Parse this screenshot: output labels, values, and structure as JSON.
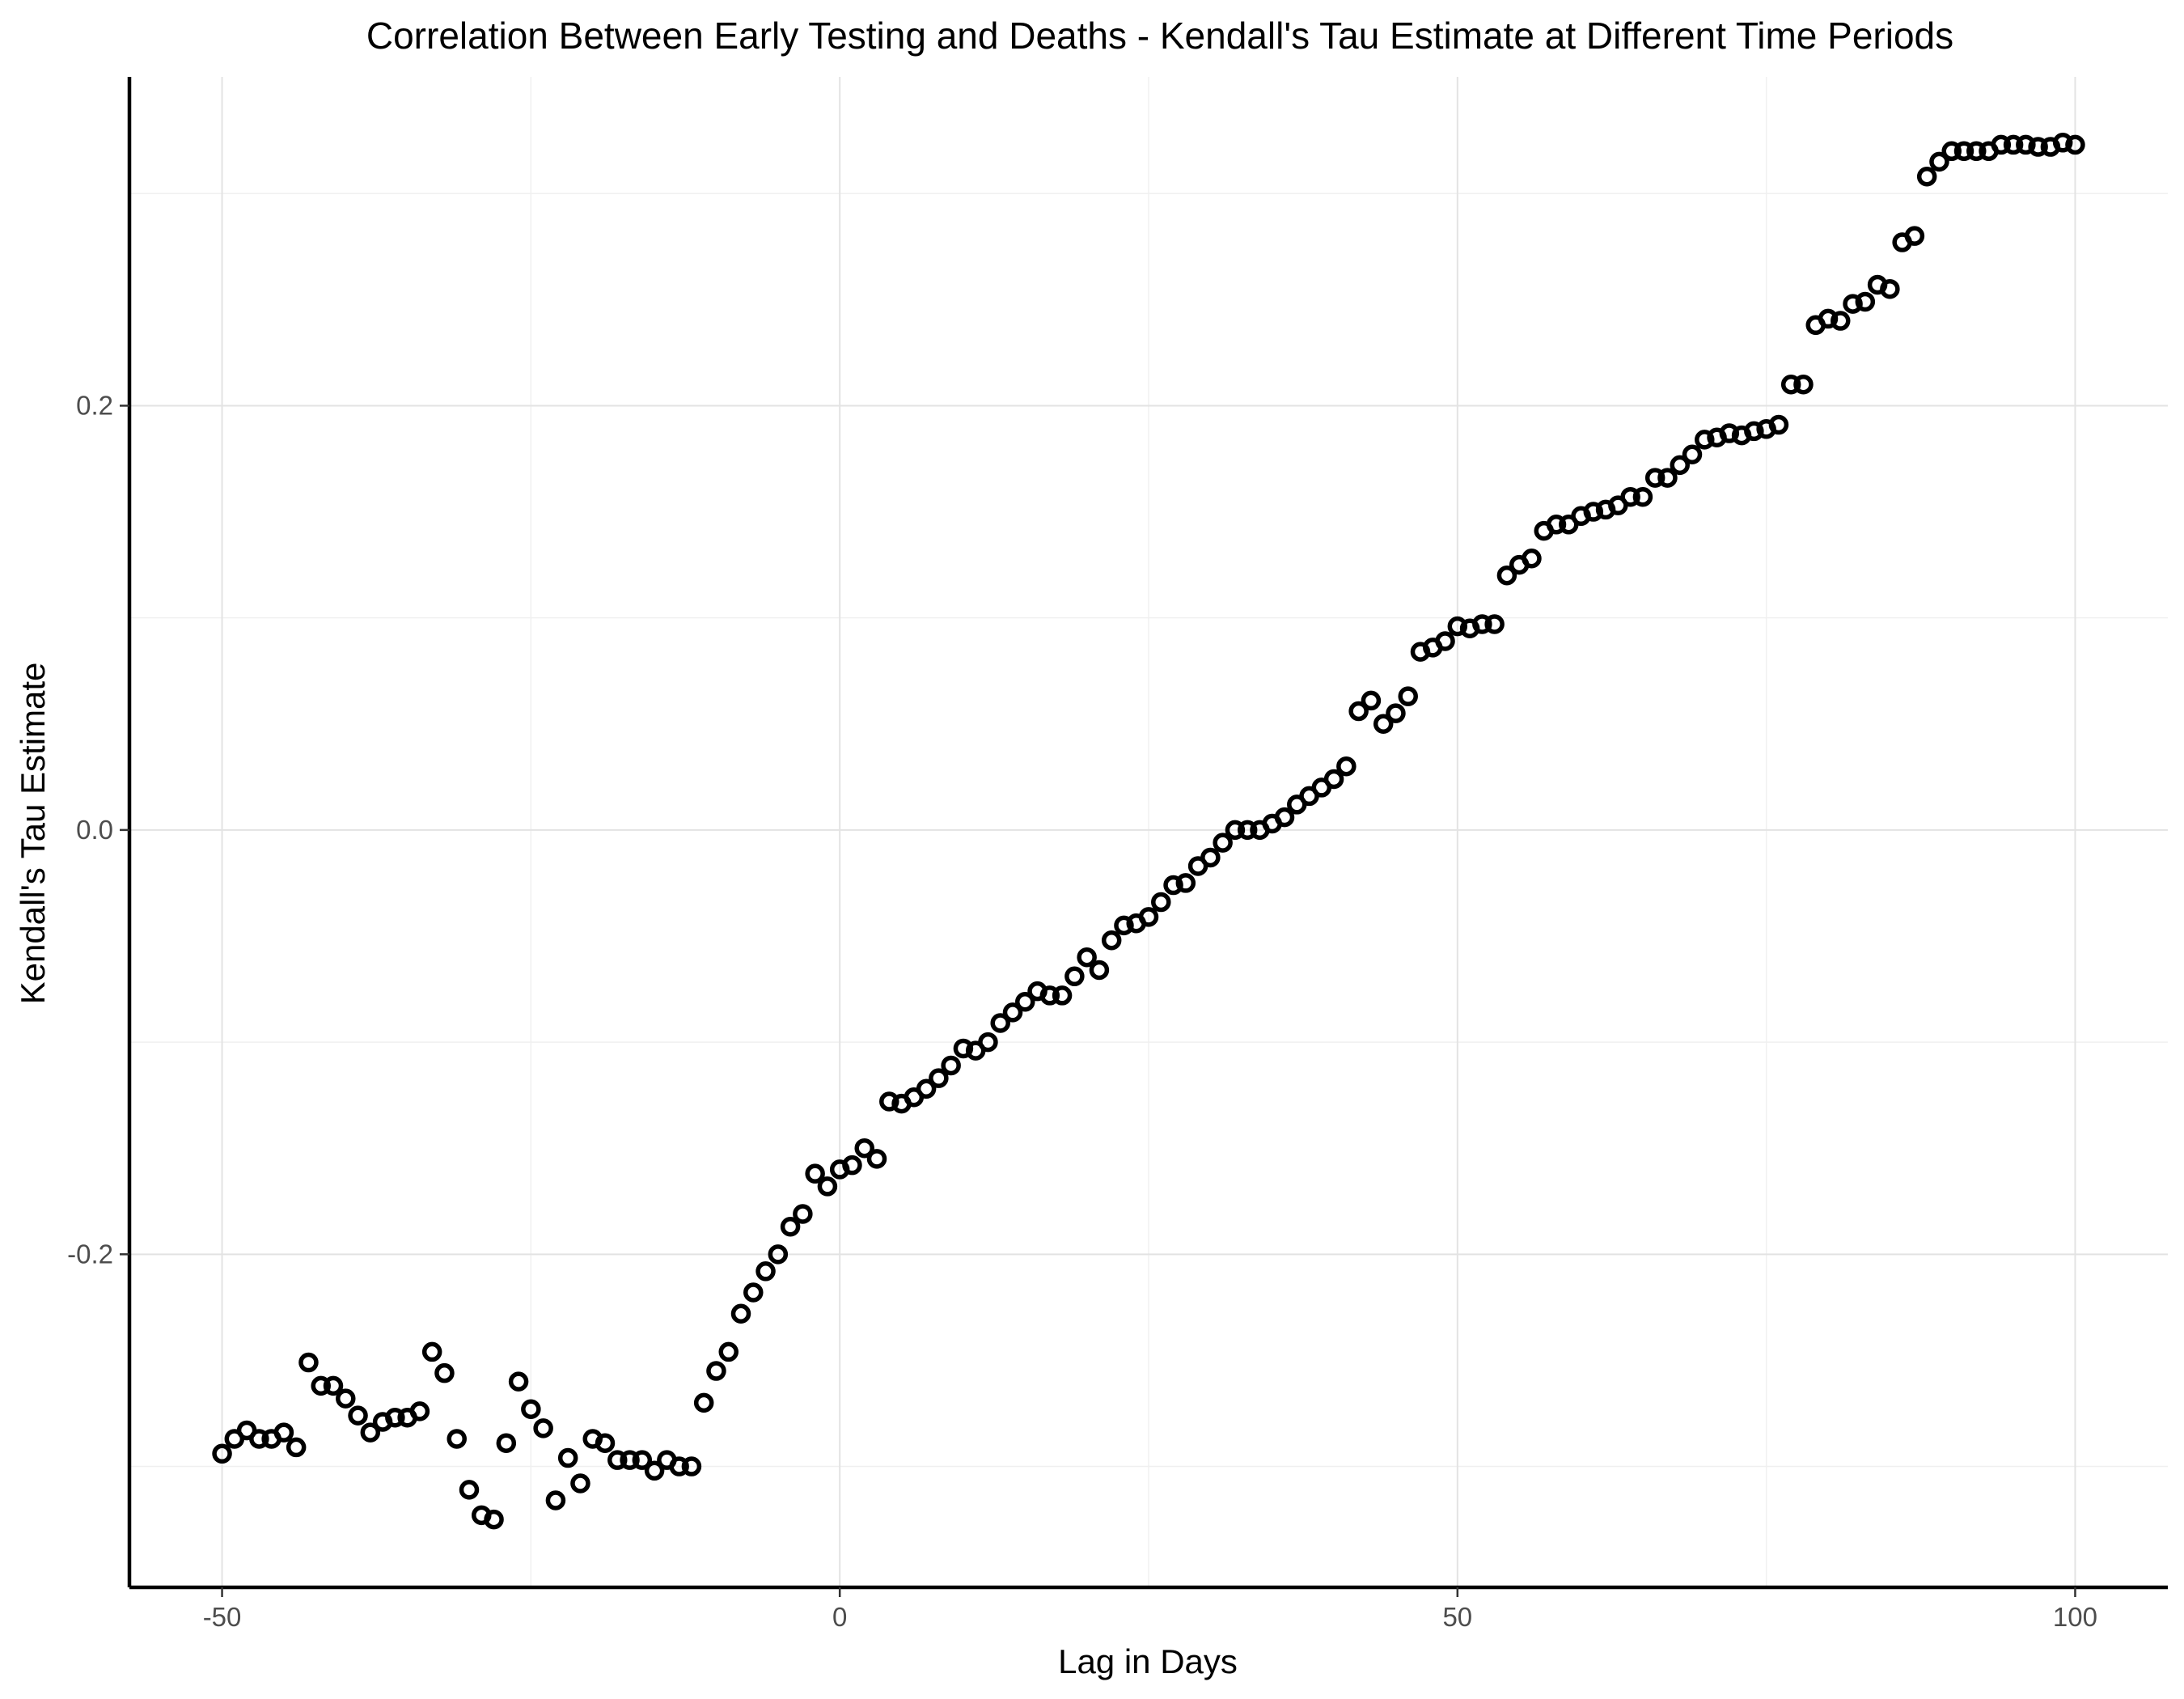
{
  "chart_data": {
    "type": "scatter",
    "title": "Correlation Between Early Testing and Deaths - Kendall's Tau Estimate at Different Time Periods",
    "xlabel": "Lag in Days",
    "ylabel": "Kendall's Tau Estimate",
    "xlim": [
      -57.5,
      107.5
    ],
    "ylim": [
      -0.357,
      0.355
    ],
    "x_ticks": [
      -50,
      0,
      50,
      100
    ],
    "x_tick_labels": [
      "-50",
      "0",
      "50",
      "100"
    ],
    "y_ticks": [
      -0.2,
      0.0,
      0.2
    ],
    "y_tick_labels": [
      "-0.2",
      "0.0",
      "0.2"
    ],
    "grid": true,
    "legend": "none",
    "x": [
      -50,
      -49,
      -48,
      -47,
      -46,
      -45,
      -44,
      -43,
      -42,
      -41,
      -40,
      -39,
      -38,
      -37,
      -36,
      -35,
      -34,
      -33,
      -32,
      -31,
      -30,
      -29,
      -28,
      -27,
      -26,
      -25,
      -24,
      -23,
      -22,
      -21,
      -20,
      -19,
      -18,
      -17,
      -16,
      -15,
      -14,
      -13,
      -12,
      -11,
      -10,
      -9,
      -8,
      -7,
      -6,
      -5,
      -4,
      -3,
      -2,
      -1,
      0,
      1,
      2,
      3,
      4,
      5,
      6,
      7,
      8,
      9,
      10,
      11,
      12,
      13,
      14,
      15,
      16,
      17,
      18,
      19,
      20,
      21,
      22,
      23,
      24,
      25,
      26,
      27,
      28,
      29,
      30,
      31,
      32,
      33,
      34,
      35,
      36,
      37,
      38,
      39,
      40,
      41,
      42,
      43,
      44,
      45,
      46,
      47,
      48,
      49,
      50,
      51,
      52,
      53,
      54,
      55,
      56,
      57,
      58,
      59,
      60,
      61,
      62,
      63,
      64,
      65,
      66,
      67,
      68,
      69,
      70,
      71,
      72,
      73,
      74,
      75,
      76,
      77,
      78,
      79,
      80,
      81,
      82,
      83,
      84,
      85,
      86,
      87,
      88,
      89,
      90,
      91,
      92,
      93,
      94,
      95,
      96,
      97,
      98,
      99,
      100
    ],
    "y": [
      -0.294,
      -0.287,
      -0.283,
      -0.287,
      -0.287,
      -0.284,
      -0.291,
      -0.251,
      -0.262,
      -0.262,
      -0.268,
      -0.276,
      -0.284,
      -0.279,
      -0.277,
      -0.277,
      -0.274,
      -0.246,
      -0.256,
      -0.287,
      -0.311,
      -0.323,
      -0.325,
      -0.289,
      -0.26,
      -0.273,
      -0.282,
      -0.316,
      -0.296,
      -0.308,
      -0.287,
      -0.289,
      -0.297,
      -0.297,
      -0.297,
      -0.302,
      -0.297,
      -0.3,
      -0.3,
      -0.27,
      -0.255,
      -0.246,
      -0.228,
      -0.218,
      -0.208,
      -0.2,
      -0.187,
      -0.181,
      -0.162,
      -0.168,
      -0.16,
      -0.158,
      -0.15,
      -0.155,
      -0.128,
      -0.129,
      -0.126,
      -0.122,
      -0.117,
      -0.111,
      -0.103,
      -0.104,
      -0.1,
      -0.091,
      -0.086,
      -0.081,
      -0.076,
      -0.078,
      -0.078,
      -0.069,
      -0.06,
      -0.066,
      -0.052,
      -0.045,
      -0.044,
      -0.041,
      -0.034,
      -0.026,
      -0.025,
      -0.017,
      -0.013,
      -0.006,
      0.0,
      0.0,
      0.0,
      0.003,
      0.006,
      0.012,
      0.016,
      0.02,
      0.024,
      0.03,
      0.056,
      0.061,
      0.05,
      0.055,
      0.063,
      0.084,
      0.086,
      0.089,
      0.096,
      0.095,
      0.097,
      0.097,
      0.12,
      0.125,
      0.128,
      0.141,
      0.144,
      0.144,
      0.148,
      0.15,
      0.151,
      0.153,
      0.157,
      0.157,
      0.166,
      0.166,
      0.172,
      0.177,
      0.184,
      0.185,
      0.187,
      0.186,
      0.188,
      0.189,
      0.191,
      0.21,
      0.21,
      0.238,
      0.241,
      0.24,
      0.248,
      0.249,
      0.257,
      0.255,
      0.277,
      0.28,
      0.308,
      0.315,
      0.32,
      0.32,
      0.32,
      0.32,
      0.323,
      0.323,
      0.323,
      0.322,
      0.322,
      0.324,
      0.323
    ]
  }
}
